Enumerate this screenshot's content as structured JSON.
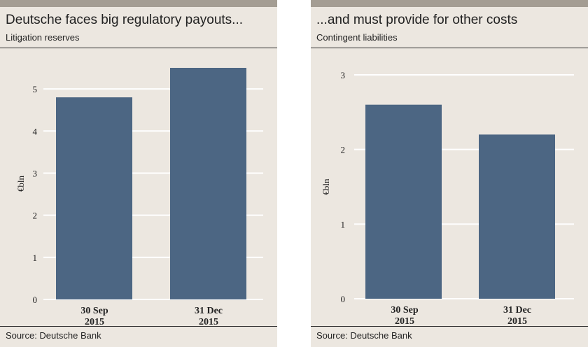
{
  "source": "Source: Deutsche Bank",
  "colors": {
    "bar": "#4c6683",
    "panel": "#ece7e0",
    "gridline": "#ffffff",
    "topbar": "#a49d93"
  },
  "chart_data": [
    {
      "type": "bar",
      "title": "Deutsche faces big regulatory payouts...",
      "subtitle": "Litigation reserves",
      "ylabel": "€bln",
      "categories": [
        [
          "30 Sep",
          "2015"
        ],
        [
          "31 Dec",
          "2015"
        ]
      ],
      "values": [
        4.8,
        5.5
      ],
      "ylim": [
        0,
        5.5
      ],
      "yticks": [
        0,
        1,
        2,
        3,
        4,
        5
      ],
      "grid": true
    },
    {
      "type": "bar",
      "title": "...and must provide for other costs",
      "subtitle": "Contingent liabilities",
      "ylabel": "€bln",
      "categories": [
        [
          "30 Sep",
          "2015"
        ],
        [
          "31 Dec",
          "2015"
        ]
      ],
      "values": [
        2.6,
        2.2
      ],
      "ylim": [
        0,
        3
      ],
      "yticks": [
        0,
        1,
        2,
        3
      ],
      "grid": true
    }
  ]
}
